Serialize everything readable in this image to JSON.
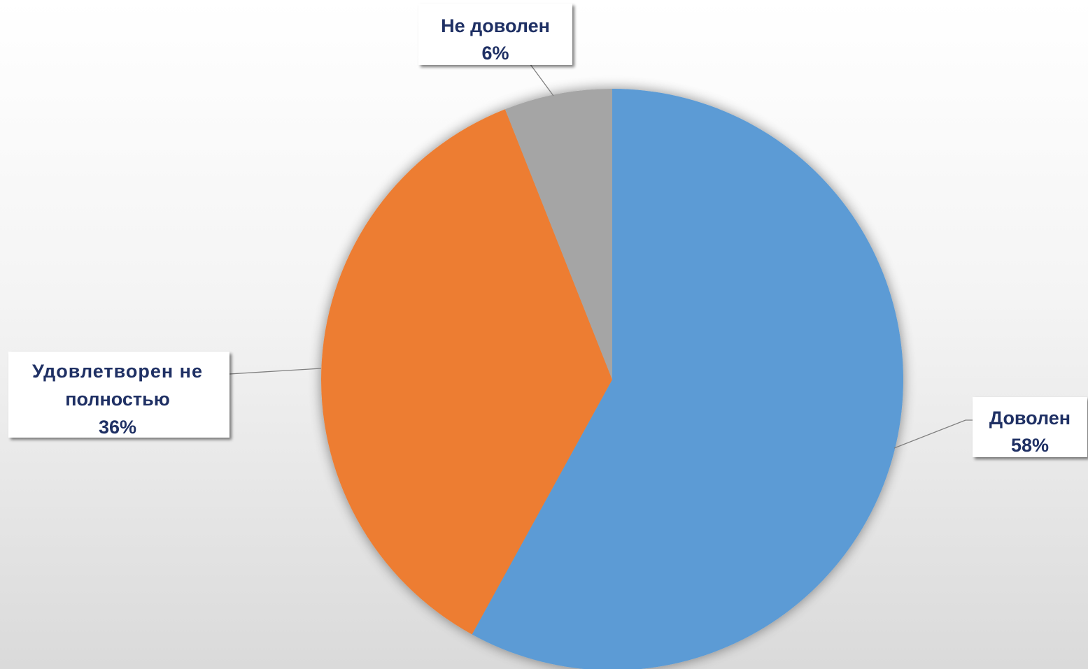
{
  "chart_data": {
    "type": "pie",
    "title": "",
    "start_angle_deg": 0,
    "direction": "clockwise",
    "slices": [
      {
        "label": "Доволен",
        "value": 58,
        "value_label": "58%",
        "color": "#5b9bd5"
      },
      {
        "label": "Удовлетворен не полностью",
        "value": 36,
        "value_label": "36%",
        "color": "#ed7d31"
      },
      {
        "label": "Не доволен",
        "value": 6,
        "value_label": "6%",
        "color": "#a5a5a5"
      }
    ],
    "data_labels": {
      "show_category": true,
      "show_percent": true,
      "text_color": "#1f3064",
      "background": "#ffffff"
    },
    "legend": "none"
  }
}
